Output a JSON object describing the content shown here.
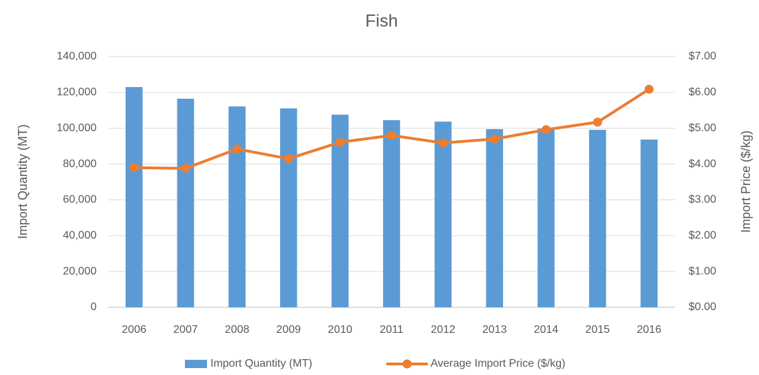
{
  "chart_data": {
    "type": "bar",
    "title": "Fish",
    "y_label": "Import Quantity (MT)",
    "y2_label": "Import Price ($/kg)",
    "categories": [
      "2006",
      "2007",
      "2008",
      "2009",
      "2010",
      "2011",
      "2012",
      "2013",
      "2014",
      "2015",
      "2016"
    ],
    "series": [
      {
        "name": "Import Quantity (MT)",
        "type": "bar",
        "color": "#5b9bd5",
        "values": [
          123000,
          116500,
          112200,
          111100,
          107600,
          104500,
          103700,
          99500,
          99800,
          99100,
          93700
        ]
      },
      {
        "name": "Average Import Price ($/kg)",
        "type": "line",
        "axis": "y2",
        "color": "#ed7d31",
        "values": [
          3.9,
          3.88,
          4.42,
          4.15,
          4.61,
          4.8,
          4.59,
          4.7,
          4.96,
          5.17,
          6.09
        ]
      }
    ],
    "ylim": [
      0,
      140000
    ],
    "yticks": [
      0,
      {
        "value": 20000,
        "label": "20,000"
      },
      {
        "value": 40000,
        "label": "40,000"
      },
      {
        "value": 60000,
        "label": "60,000"
      },
      {
        "value": 80000,
        "label": "80,000"
      },
      {
        "value": 100000,
        "label": "100,000"
      },
      {
        "value": 120000,
        "label": "120,000"
      },
      {
        "value": 140000,
        "label": "140,000"
      }
    ],
    "y2lim": [
      0,
      7
    ],
    "y2ticks": [
      {
        "value": 0,
        "label": "$0.00"
      },
      {
        "value": 1,
        "label": "$1.00"
      },
      {
        "value": 2,
        "label": "$2.00"
      },
      {
        "value": 3,
        "label": "$3.00"
      },
      {
        "value": 4,
        "label": "$4.00"
      },
      {
        "value": 5,
        "label": "$5.00"
      },
      {
        "value": 6,
        "label": "$6.00"
      },
      {
        "value": 7,
        "label": "$7.00"
      }
    ],
    "grid": true,
    "legend": "bottom"
  }
}
